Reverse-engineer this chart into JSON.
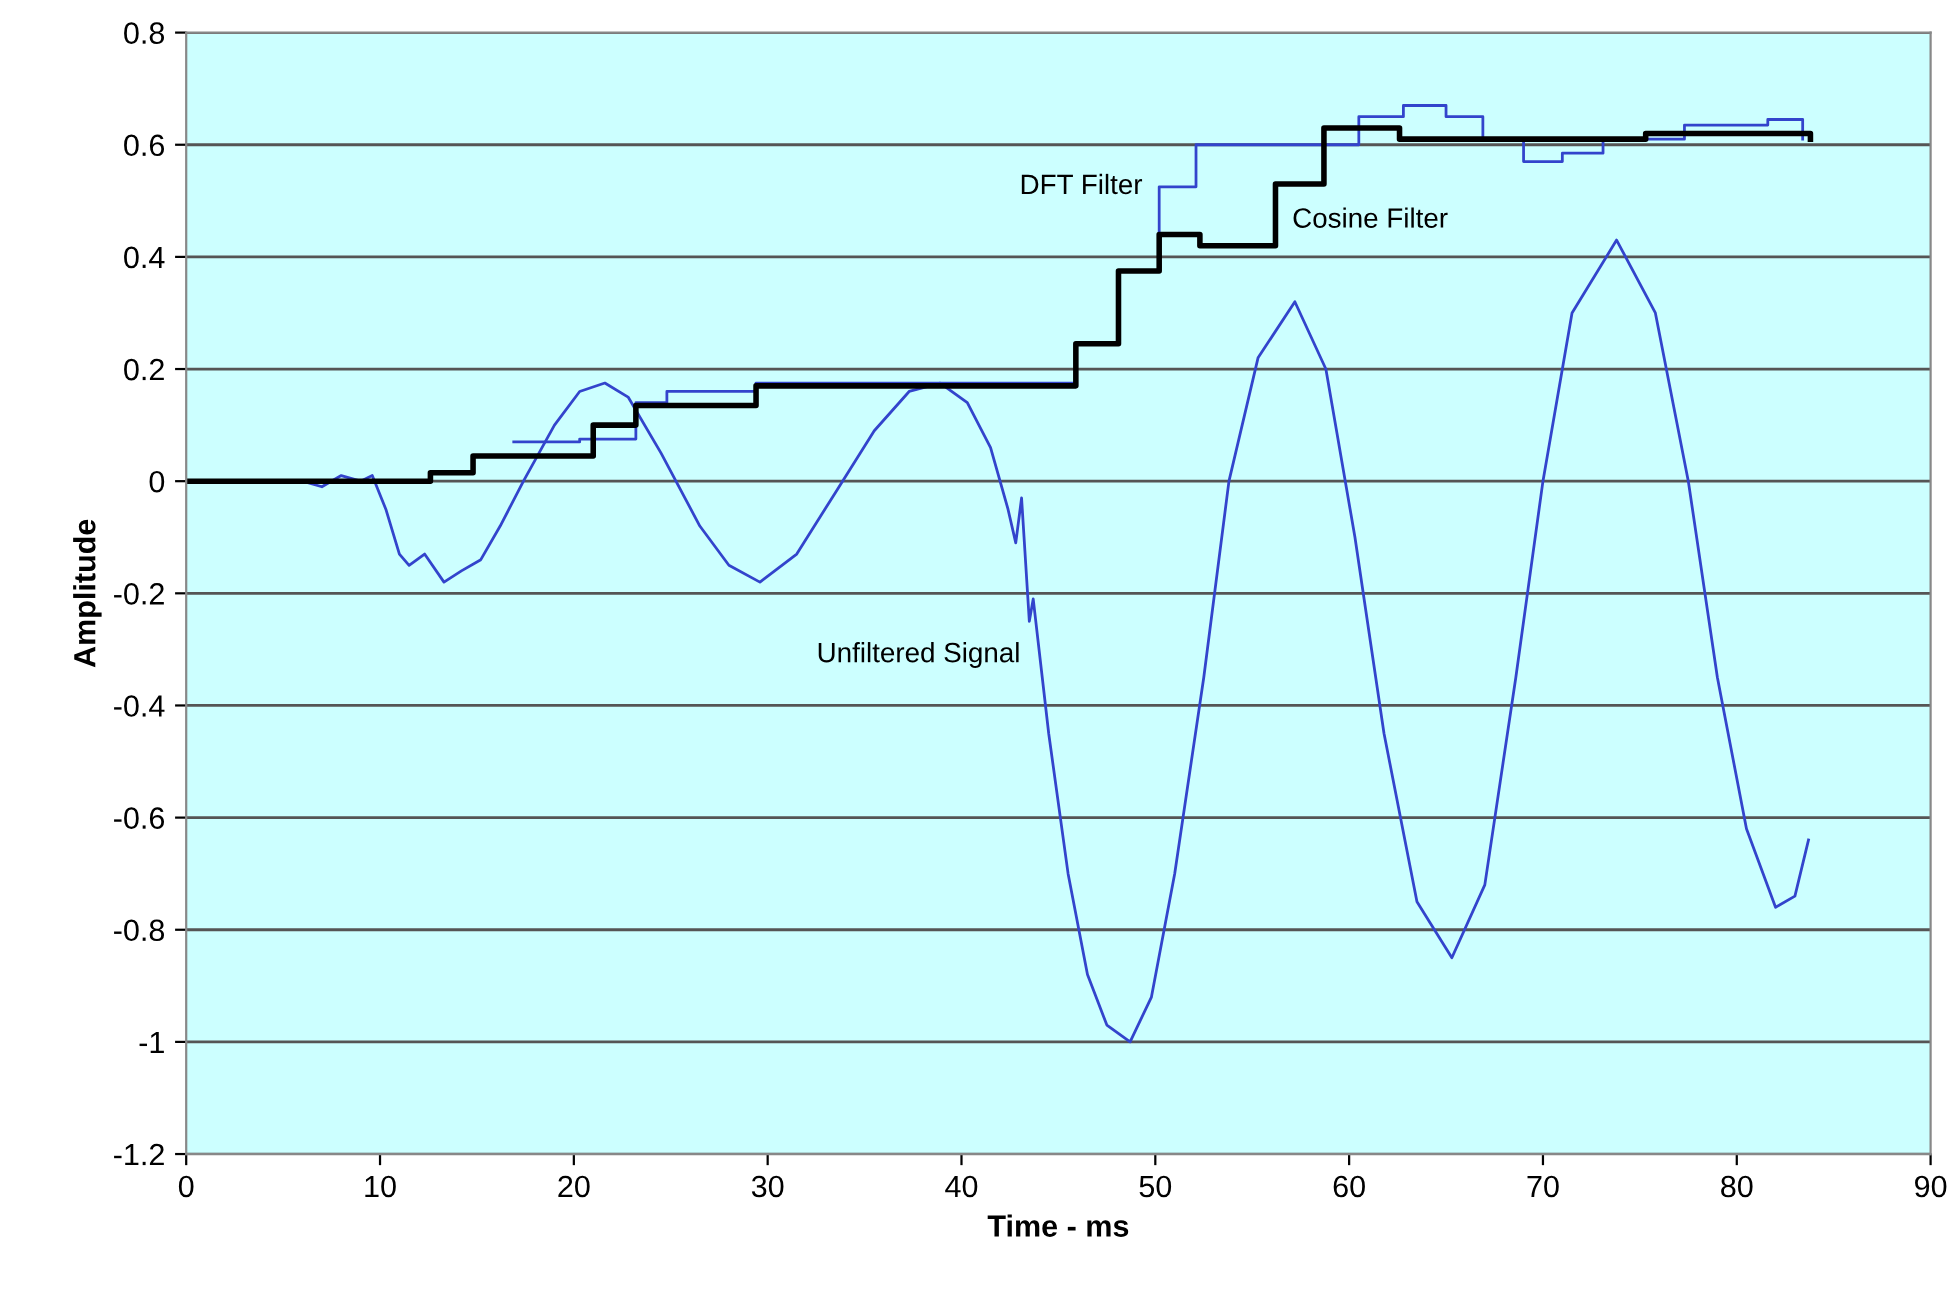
{
  "chart_data": {
    "type": "line",
    "xlabel": "Time - ms",
    "ylabel": "Amplitude",
    "xlim": [
      0,
      90
    ],
    "xticks": [
      0,
      10,
      20,
      30,
      40,
      50,
      60,
      70,
      80,
      90
    ],
    "ylim": [
      -1.2,
      0.8
    ],
    "yticks": [
      -1.2,
      -1,
      -0.8,
      -0.6,
      -0.4,
      -0.2,
      0,
      0.2,
      0.4,
      0.6,
      0.8
    ],
    "grid": "y",
    "series": [
      {
        "color": "#3344cc",
        "x": [
          0,
          6,
          7,
          8,
          9,
          9.6,
          10.3,
          11,
          11.5,
          12.3,
          13.3,
          14.2,
          15.2,
          16.2,
          17.4,
          19,
          20.3,
          21.6,
          22.8,
          24.5,
          26.5,
          28,
          29.6,
          31.5,
          33.5,
          35.5,
          37.3,
          38.9,
          40.3,
          41.5,
          42.4,
          42.8,
          43.1,
          43.5,
          43.7,
          44.5,
          45.5,
          46.5,
          47.5,
          48.7,
          49.8,
          51,
          52.5,
          53.8,
          55.3,
          57.2,
          58.8,
          60.3,
          61.8,
          63.5,
          65.3,
          67,
          68.6,
          70,
          71.5,
          73.8,
          75.8,
          77.5,
          79,
          80.5,
          82,
          83,
          83.7
        ],
        "values": [
          0,
          0,
          -0.01,
          0.01,
          0,
          0.01,
          -0.05,
          -0.13,
          -0.15,
          -0.13,
          -0.18,
          -0.16,
          -0.14,
          -0.08,
          0,
          0.1,
          0.16,
          0.175,
          0.15,
          0.05,
          -0.08,
          -0.15,
          -0.18,
          -0.13,
          -0.02,
          0.09,
          0.16,
          0.175,
          0.14,
          0.06,
          -0.05,
          -0.11,
          -0.03,
          -0.25,
          -0.21,
          -0.45,
          -0.7,
          -0.88,
          -0.97,
          -1.0,
          -0.92,
          -0.7,
          -0.35,
          0,
          0.22,
          0.32,
          0.2,
          -0.1,
          -0.45,
          -0.75,
          -0.85,
          -0.72,
          -0.35,
          0.0,
          0.3,
          0.43,
          0.3,
          0.0,
          -0.35,
          -0.62,
          -0.76,
          -0.74,
          -0.64
        ]
      },
      {
        "type": "step",
        "color": "#3344cc",
        "x": [
          0,
          12.6,
          14.8,
          16.9,
          20.3,
          23.2,
          24.8,
          29.4,
          45.9,
          48.1,
          50.2,
          52.1,
          60.5,
          62.8,
          65,
          66.9,
          69,
          71,
          73.1,
          77.3,
          81.6,
          83.4
        ],
        "values": [
          0,
          0.015,
          null,
          0.07,
          0.075,
          0.14,
          0.16,
          0.175,
          0.245,
          0.375,
          0.525,
          0.6,
          0.65,
          0.67,
          0.65,
          0.61,
          0.57,
          0.585,
          0.61,
          0.635,
          0.645,
          0.61
        ]
      },
      {
        "type": "step",
        "color": "#000000",
        "x": [
          0,
          12.6,
          14.8,
          21.0,
          23.2,
          29.4,
          45.9,
          48.1,
          50.2,
          52.3,
          56.2,
          58.7,
          62.6,
          75.3,
          83.8
        ],
        "values": [
          0,
          0.015,
          0.045,
          0.1,
          0.135,
          0.17,
          0.245,
          0.375,
          0.44,
          0.42,
          0.53,
          0.63,
          0.61,
          0.62,
          0.61
        ]
      }
    ],
    "annotations": [
      {
        "text": "DFT Filter",
        "x": 50.2,
        "y": 0.525
      },
      {
        "text": "Cosine Filter",
        "x": 56.2,
        "y": 0.465
      },
      {
        "text": "Unfiltered Signal",
        "x": 43.9,
        "y": -0.31
      }
    ]
  }
}
